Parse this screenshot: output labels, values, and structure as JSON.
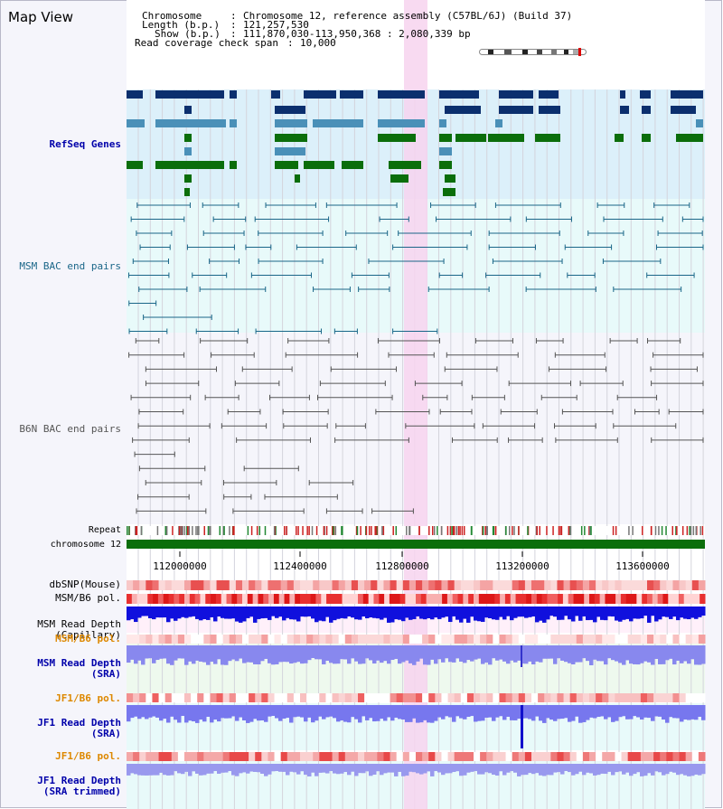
{
  "app_title": "Map View",
  "header": {
    "chromosome_label": "Chromosome",
    "chromosome_value": "Chromosome 12, reference assembly (C57BL/6J) (Build 37)",
    "length_label": "Length (b.p.)",
    "length_value": "121,257,530",
    "show_label": "Show (b.p.)",
    "show_value": "111,870,030-113,950,368 : 2,080,339 bp",
    "coverage_label": "Read coverage check span",
    "coverage_value": "10,000"
  },
  "tracks": {
    "refseq": "RefSeq Genes",
    "msm_bac": "MSM BAC end pairs",
    "b6n_bac": "B6N BAC end pairs",
    "repeat": "Repeat",
    "chromosome": "chromosome 12",
    "dbsnp": "dbSNP(Mouse)",
    "msm_b6_pol": "MSM/B6 pol.",
    "msm_depth_cap_1": "MSM Read Depth",
    "msm_depth_cap_2": "(Capillary)",
    "msm_b6_pol_2": "MSM/B6 pol.",
    "msm_depth_sra_1": "MSM Read Depth",
    "msm_depth_sra_2": "(SRA)",
    "jf1_b6_pol": "JF1/B6 pol.",
    "jf1_depth_sra_1": "JF1 Read Depth",
    "jf1_depth_sra_2": "(SRA)",
    "jf1_b6_pol_2": "JF1/B6 pol.",
    "jf1_depth_trim_1": "JF1 Read Depth",
    "jf1_depth_trim_2": "(SRA trimmed)"
  },
  "axis_ticks": [
    "112000000",
    "112400000",
    "112800000",
    "113200000",
    "113600000"
  ],
  "colors": {
    "refseq_dark": "#0b2f6e",
    "refseq_mid": "#4a90b8",
    "refseq_green": "#0b6e0b",
    "msm_bac": "#1a6688",
    "b6n_bac": "#555555",
    "chromosome": "#0b6e0b",
    "highlight": "#f7d4ef",
    "label_blue": "#0000aa",
    "label_orange": "#dd8800"
  }
}
